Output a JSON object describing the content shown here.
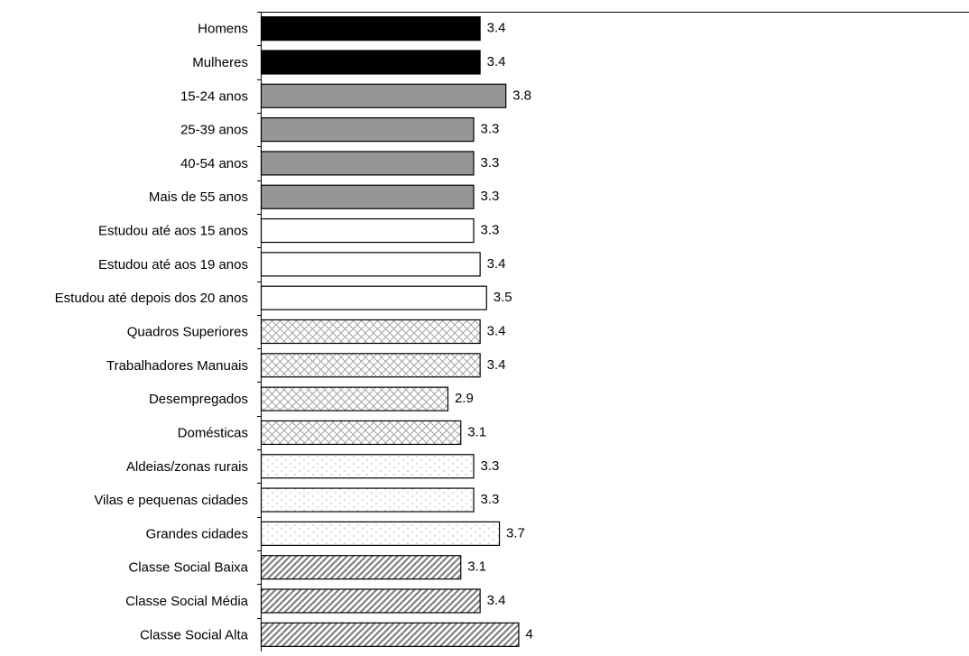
{
  "chart_data": {
    "type": "bar",
    "orientation": "horizontal",
    "title": "",
    "xlabel": "",
    "ylabel": "",
    "xlim": [
      0,
      11
    ],
    "grid": false,
    "legend": "none",
    "categories": [
      "Homens",
      "Mulheres",
      "15-24 anos",
      "25-39 anos",
      "40-54 anos",
      "Mais de 55 anos",
      "Estudou até aos 15 anos",
      "Estudou até aos 19 anos",
      "Estudou até depois dos 20 anos",
      "Quadros Superiores",
      "Trabalhadores Manuais",
      "Desempregados",
      "Domésticas",
      "Aldeias/zonas rurais",
      "Vilas e pequenas cidades",
      "Grandes cidades",
      "Classe Social Baixa",
      "Classe Social Média",
      "Classe Social Alta"
    ],
    "values": [
      3.4,
      3.4,
      3.8,
      3.3,
      3.3,
      3.3,
      3.3,
      3.4,
      3.5,
      3.4,
      3.4,
      2.9,
      3.1,
      3.3,
      3.3,
      3.7,
      3.1,
      3.4,
      4
    ],
    "data_labels": [
      "3.4",
      "3.4",
      "3.8",
      "3.3",
      "3.3",
      "3.3",
      "3.3",
      "3.4",
      "3.5",
      "3.4",
      "3.4",
      "2.9",
      "3.1",
      "3.3",
      "3.3",
      "3.7",
      "3.1",
      "3.4",
      "4"
    ],
    "bar_styles": [
      "solid-black",
      "solid-black",
      "solid-gray",
      "solid-gray",
      "solid-gray",
      "solid-gray",
      "white",
      "white",
      "white",
      "crosshatch",
      "crosshatch",
      "crosshatch",
      "crosshatch",
      "dotted",
      "dotted",
      "dotted",
      "diagonal",
      "diagonal",
      "diagonal"
    ],
    "colors": {
      "black": "#000000",
      "gray": "#969696",
      "white": "#ffffff",
      "pattern": "#a6a6a6",
      "outline": "#000000"
    }
  }
}
